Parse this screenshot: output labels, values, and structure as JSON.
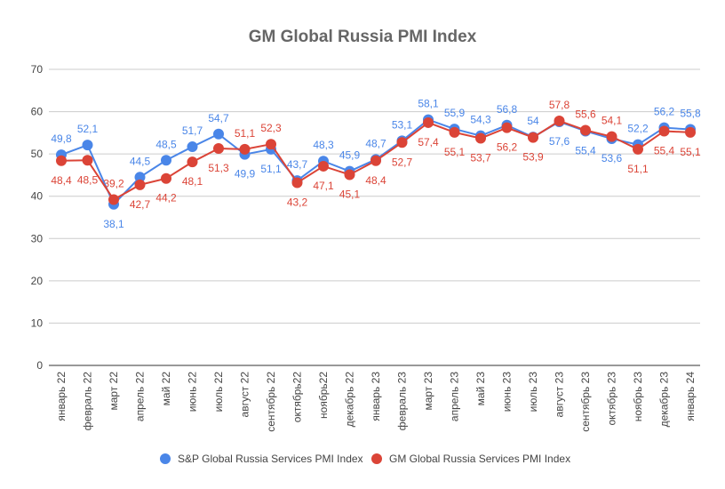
{
  "chart_data": {
    "type": "line",
    "title": "GM Global Russia PMI Index",
    "xlabel": "",
    "ylabel": "",
    "ylim": [
      0,
      70
    ],
    "yticks": [
      0,
      10,
      20,
      30,
      40,
      50,
      60,
      70
    ],
    "grid": true,
    "legend_position": "bottom",
    "categories": [
      "январь 22",
      "февраль 22",
      "март 22",
      "апрель 22",
      "май 22",
      "июнь 22",
      "июль 22",
      "август 22",
      "сентябрь 22",
      "октябрь22",
      "ноябрь22",
      "декабрь 22",
      "январь 23",
      "февраль 23",
      "март 23",
      "апрель 23",
      "май 23",
      "июнь 23",
      "июль 23",
      "август 23",
      "сентябрь 23",
      "октябрь 23",
      "ноябрь 23",
      "декабрь 23",
      "январь 24"
    ],
    "series": [
      {
        "name": "S&P Global Russia Services PMI Index",
        "color": "#4a86e8",
        "values": [
          49.8,
          52.1,
          38.1,
          44.5,
          48.5,
          51.7,
          54.7,
          49.9,
          51.1,
          43.7,
          48.3,
          45.9,
          48.7,
          53.1,
          58.1,
          55.9,
          54.3,
          56.8,
          54,
          57.6,
          55.4,
          53.6,
          52.2,
          56.2,
          55.8
        ],
        "labels": [
          "49,8",
          "52,1",
          "38,1",
          "44,5",
          "48,5",
          "51,7",
          "54,7",
          "49,9",
          "51,1",
          "43,7",
          "48,3",
          "45,9",
          "48,7",
          "53,1",
          "58,1",
          "55,9",
          "54,3",
          "56,8",
          "54",
          "57,6",
          "55,4",
          "53,6",
          "52,2",
          "56,2",
          "55,8"
        ]
      },
      {
        "name": "GM Global Russia Services PMI Index",
        "color": "#db4437",
        "values": [
          48.4,
          48.5,
          39.2,
          42.7,
          44.2,
          48.1,
          51.3,
          51.1,
          52.3,
          43.2,
          47.1,
          45.1,
          48.4,
          52.7,
          57.4,
          55.1,
          53.7,
          56.2,
          53.9,
          57.8,
          55.6,
          54.1,
          51.1,
          55.4,
          55.1
        ],
        "labels": [
          "48,4",
          "48,5",
          "39,2",
          "42,7",
          "44,2",
          "48,1",
          "51,3",
          "51,1",
          "52,3",
          "43,2",
          "47,1",
          "45,1",
          "48,4",
          "52,7",
          "57,4",
          "55,1",
          "53,7",
          "56,2",
          "53,9",
          "57,8",
          "55,6",
          "54,1",
          "51,1",
          "55,4",
          "55,1"
        ]
      }
    ]
  }
}
